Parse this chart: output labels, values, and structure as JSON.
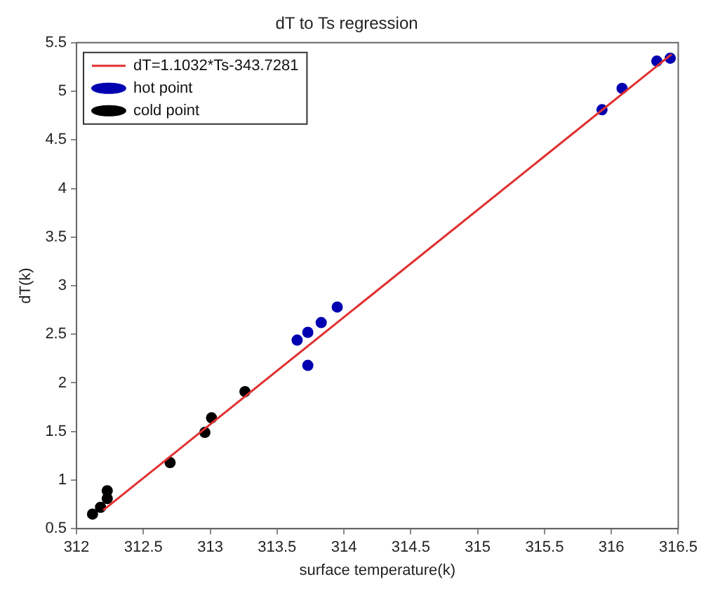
{
  "chart_data": {
    "type": "scatter",
    "title": "dT to Ts regression",
    "xlabel": "surface temperature(k)",
    "ylabel": "dT(k)",
    "xlim": [
      312,
      316.5
    ],
    "xticks": [
      312,
      312.5,
      313,
      313.5,
      314,
      314.5,
      315,
      315.5,
      316,
      316.5
    ],
    "ylim": [
      0.5,
      5.5
    ],
    "yticks": [
      0.5,
      1,
      1.5,
      2,
      2.5,
      3,
      3.5,
      4,
      4.5,
      5,
      5.5
    ],
    "grid": false,
    "legend": "top left",
    "marker": "circle",
    "series": [
      {
        "name": "hot point",
        "color": "#0000b0",
        "type": "scatter",
        "x": [
          313.65,
          313.73,
          313.83,
          313.95,
          313.73,
          315.93,
          316.08,
          316.34,
          316.44
        ],
        "values": [
          2.44,
          2.52,
          2.62,
          2.78,
          2.18,
          4.81,
          5.03,
          5.31,
          5.34
        ]
      },
      {
        "name": "cold point",
        "color": "#000000",
        "type": "scatter",
        "x": [
          312.12,
          312.18,
          312.23,
          312.23,
          312.7,
          312.96,
          313.01,
          313.26
        ],
        "values": [
          0.65,
          0.72,
          0.81,
          0.89,
          1.18,
          1.49,
          1.64,
          1.91
        ]
      },
      {
        "name": "dT=1.1032*Ts-343.7281",
        "color": "#e03030",
        "type": "line",
        "marker": "none",
        "line_style": "solid",
        "x": [
          312.2,
          316.45
        ],
        "values": [
          0.69,
          5.38
        ]
      }
    ]
  }
}
